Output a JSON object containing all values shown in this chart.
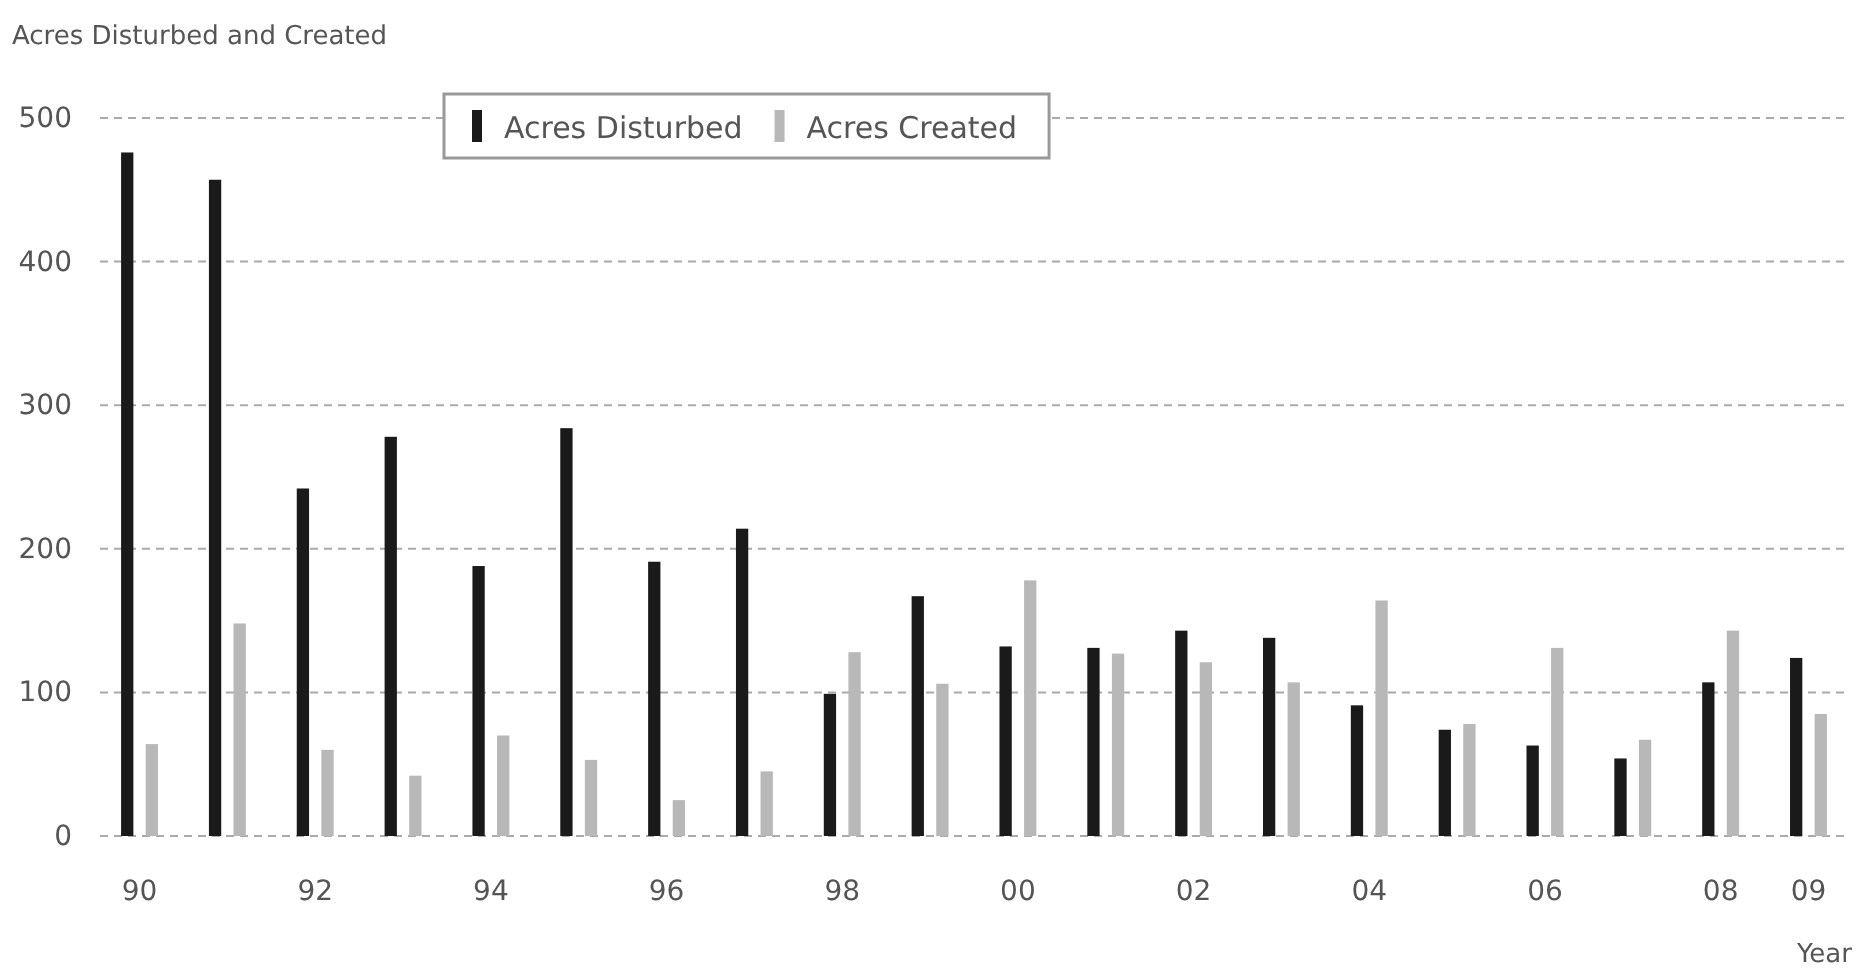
{
  "chart_data": {
    "type": "bar",
    "ylabel": "Acres Disturbed and Created",
    "xlabel": "Year",
    "categories": [
      "90",
      null,
      "92",
      null,
      "94",
      null,
      "96",
      null,
      "98",
      null,
      "00",
      null,
      "02",
      null,
      "04",
      null,
      "06",
      null,
      "08",
      "09"
    ],
    "series": [
      {
        "name": "Acres Disturbed",
        "color": "#1a1a1a",
        "values": [
          476,
          457,
          242,
          278,
          188,
          284,
          191,
          214,
          99,
          167,
          132,
          131,
          143,
          138,
          91,
          74,
          63,
          54,
          107,
          124
        ]
      },
      {
        "name": "Acres Created",
        "color": "#b8b8b8",
        "values": [
          64,
          148,
          60,
          42,
          70,
          53,
          25,
          45,
          128,
          106,
          178,
          127,
          121,
          107,
          164,
          78,
          131,
          67,
          143,
          85
        ]
      }
    ],
    "ylim": [
      0,
      500
    ],
    "yticks": [
      0,
      100,
      200,
      300,
      400,
      500
    ],
    "grid": "y",
    "legend": "top"
  }
}
